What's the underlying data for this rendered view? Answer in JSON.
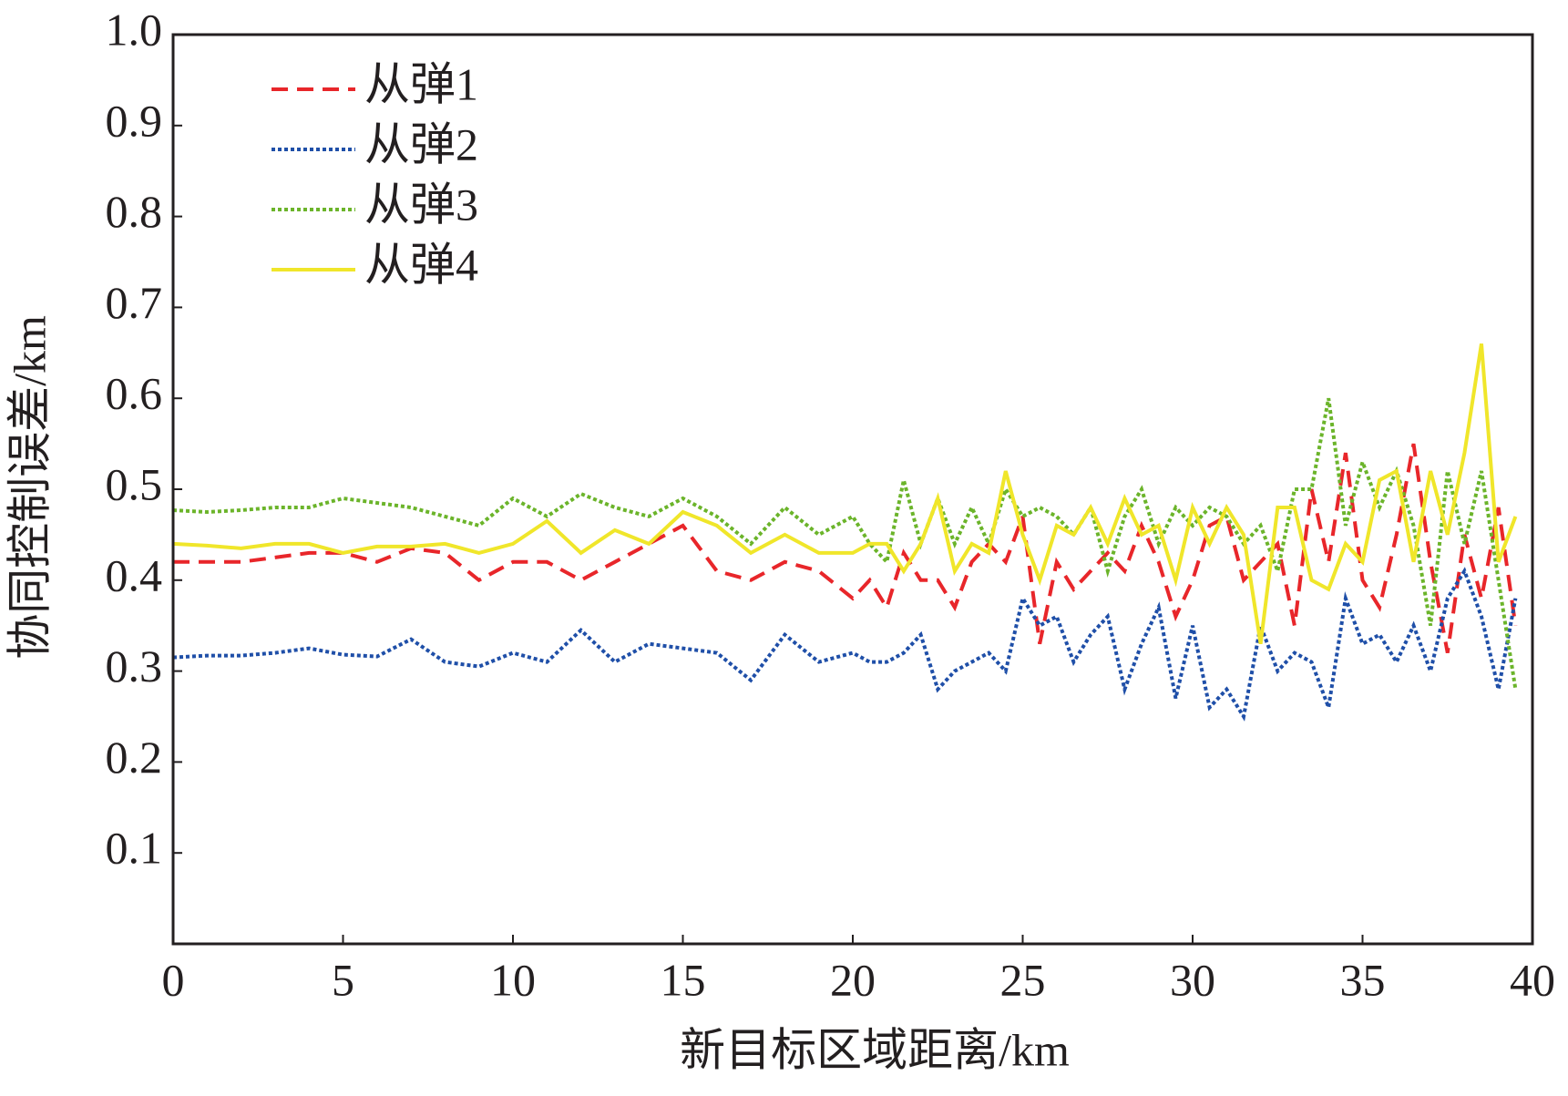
{
  "chart_data": {
    "type": "line",
    "xlabel": "新目标区域距离/km",
    "ylabel": "协同控制误差/km",
    "x": [
      0,
      1,
      2,
      3,
      4,
      5,
      6,
      7,
      8,
      9,
      10,
      11,
      12,
      13,
      14,
      15,
      16,
      17,
      18,
      19,
      20,
      20.5,
      21,
      21.5,
      22,
      22.5,
      23,
      23.5,
      24,
      24.5,
      25,
      25.5,
      26,
      26.5,
      27,
      27.5,
      28,
      28.5,
      29,
      29.5,
      30,
      30.5,
      31,
      31.5,
      32,
      32.5,
      33,
      33.5,
      34,
      34.5,
      35,
      35.5,
      36,
      36.5,
      37,
      37.5,
      38,
      38.5,
      39,
      39.5
    ],
    "series": [
      {
        "name": "从弹1",
        "color": "#e8262a",
        "dash": "18,10",
        "values": [
          0.42,
          0.42,
          0.42,
          0.425,
          0.43,
          0.43,
          0.42,
          0.435,
          0.43,
          0.4,
          0.42,
          0.42,
          0.4,
          0.42,
          0.44,
          0.46,
          0.41,
          0.4,
          0.42,
          0.41,
          0.38,
          0.4,
          0.37,
          0.43,
          0.4,
          0.4,
          0.37,
          0.42,
          0.44,
          0.42,
          0.47,
          0.33,
          0.42,
          0.39,
          0.41,
          0.43,
          0.41,
          0.46,
          0.42,
          0.36,
          0.4,
          0.46,
          0.47,
          0.4,
          0.42,
          0.44,
          0.35,
          0.5,
          0.42,
          0.54,
          0.4,
          0.37,
          0.45,
          0.55,
          0.42,
          0.32,
          0.45,
          0.38,
          0.48,
          0.35
        ]
      },
      {
        "name": "从弹2",
        "color": "#1f4fa8",
        "dash": "4,3",
        "values": [
          0.315,
          0.317,
          0.317,
          0.32,
          0.325,
          0.318,
          0.316,
          0.335,
          0.31,
          0.305,
          0.32,
          0.31,
          0.345,
          0.31,
          0.33,
          0.325,
          0.32,
          0.29,
          0.34,
          0.31,
          0.32,
          0.31,
          0.31,
          0.32,
          0.34,
          0.28,
          0.3,
          0.31,
          0.32,
          0.3,
          0.38,
          0.35,
          0.36,
          0.31,
          0.34,
          0.36,
          0.28,
          0.33,
          0.37,
          0.27,
          0.35,
          0.26,
          0.28,
          0.25,
          0.35,
          0.3,
          0.32,
          0.31,
          0.26,
          0.38,
          0.33,
          0.34,
          0.31,
          0.35,
          0.3,
          0.38,
          0.41,
          0.36,
          0.28,
          0.38
        ]
      },
      {
        "name": "从弹3",
        "color": "#6bb42a",
        "dash": "4,3",
        "values": [
          0.477,
          0.475,
          0.477,
          0.48,
          0.48,
          0.49,
          0.485,
          0.48,
          0.47,
          0.46,
          0.49,
          0.47,
          0.495,
          0.48,
          0.47,
          0.49,
          0.47,
          0.44,
          0.48,
          0.45,
          0.47,
          0.44,
          0.42,
          0.51,
          0.44,
          0.49,
          0.44,
          0.48,
          0.44,
          0.5,
          0.47,
          0.48,
          0.47,
          0.45,
          0.48,
          0.41,
          0.47,
          0.5,
          0.44,
          0.48,
          0.46,
          0.48,
          0.47,
          0.44,
          0.46,
          0.41,
          0.5,
          0.5,
          0.6,
          0.46,
          0.53,
          0.48,
          0.52,
          0.46,
          0.35,
          0.52,
          0.44,
          0.52,
          0.4,
          0.28
        ]
      },
      {
        "name": "从弹4",
        "color": "#f0e62a",
        "dash": "none",
        "values": [
          0.44,
          0.438,
          0.435,
          0.44,
          0.44,
          0.43,
          0.437,
          0.437,
          0.44,
          0.43,
          0.44,
          0.465,
          0.43,
          0.455,
          0.44,
          0.475,
          0.46,
          0.43,
          0.45,
          0.43,
          0.43,
          0.44,
          0.44,
          0.41,
          0.44,
          0.49,
          0.41,
          0.44,
          0.43,
          0.52,
          0.45,
          0.4,
          0.46,
          0.45,
          0.48,
          0.44,
          0.49,
          0.45,
          0.46,
          0.4,
          0.48,
          0.44,
          0.48,
          0.45,
          0.33,
          0.48,
          0.48,
          0.4,
          0.39,
          0.44,
          0.42,
          0.51,
          0.52,
          0.42,
          0.52,
          0.45,
          0.54,
          0.66,
          0.42,
          0.47
        ]
      }
    ],
    "xlim": [
      0,
      40
    ],
    "xticks": [
      0,
      5,
      10,
      15,
      20,
      25,
      30,
      35,
      40
    ],
    "ylim": [
      0,
      1
    ],
    "yticks": [
      0.1,
      0.2,
      0.3,
      0.4,
      0.5,
      0.6,
      0.7,
      0.8,
      0.9,
      {
        "value": 1,
        "label": "1.0"
      }
    ],
    "grid": false,
    "legend": "upper left"
  }
}
